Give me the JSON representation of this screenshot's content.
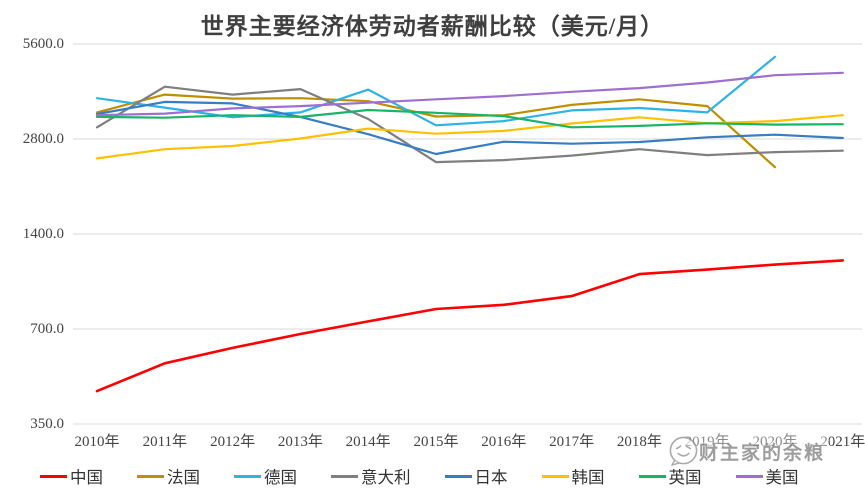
{
  "title": "世界主要经济体劳动者薪酬比较（美元/月）",
  "watermark": {
    "text": "财主家的余粮",
    "icon": "smiley-face-logo"
  },
  "chart_data": {
    "type": "line",
    "title": "世界主要经济体劳动者薪酬比较（美元/月）",
    "x": [
      "2010年",
      "2011年",
      "2012年",
      "2013年",
      "2014年",
      "2015年",
      "2016年",
      "2017年",
      "2018年",
      "2019年",
      "2020年",
      "2021年"
    ],
    "y_axis": {
      "scale": "log2",
      "ticks": [
        5600,
        2800,
        1400,
        700,
        350
      ],
      "tick_labels": [
        "5600.0",
        "2800.0",
        "1400.0",
        "700.0",
        "350.0"
      ],
      "range": [
        350,
        5600
      ]
    },
    "grid": "horizontal-only",
    "legend_position": "bottom",
    "series": [
      {
        "key": "china",
        "name": "中国",
        "color": "#fe0000",
        "values": [
          445,
          545,
          610,
          675,
          740,
          810,
          835,
          890,
          1045,
          1080,
          1120,
          1155
        ]
      },
      {
        "key": "france",
        "name": "法国",
        "color": "#bf8f00",
        "values": [
          3400,
          3870,
          3760,
          3770,
          3690,
          3300,
          3330,
          3590,
          3740,
          3560,
          2280,
          null
        ]
      },
      {
        "key": "germany",
        "name": "德国",
        "color": "#2eb3e6",
        "values": [
          3770,
          3520,
          3280,
          3400,
          4015,
          3095,
          3190,
          3450,
          3510,
          3400,
          5100,
          null
        ]
      },
      {
        "key": "italy",
        "name": "意大利",
        "color": "#7f7f7f",
        "values": [
          3050,
          4100,
          3870,
          4030,
          3240,
          2365,
          2400,
          2480,
          2600,
          2490,
          2545,
          2570
        ]
      },
      {
        "key": "japan",
        "name": "日本",
        "color": "#367dc2",
        "values": [
          3360,
          3670,
          3630,
          3290,
          2900,
          2510,
          2745,
          2705,
          2740,
          2835,
          2890,
          2820
        ]
      },
      {
        "key": "korea",
        "name": "韩国",
        "color": "#ffc000",
        "values": [
          2430,
          2600,
          2660,
          2810,
          3020,
          2910,
          2970,
          3135,
          3280,
          3140,
          3190,
          3330
        ]
      },
      {
        "key": "uk",
        "name": "英国",
        "color": "#18b566",
        "values": [
          3290,
          3270,
          3330,
          3290,
          3460,
          3390,
          3310,
          3050,
          3080,
          3140,
          3110,
          3120
        ]
      },
      {
        "key": "usa",
        "name": "美国",
        "color": "#9e6fd0",
        "values": [
          3330,
          3370,
          3500,
          3560,
          3650,
          3740,
          3830,
          3950,
          4060,
          4230,
          4460,
          4540
        ]
      }
    ]
  }
}
